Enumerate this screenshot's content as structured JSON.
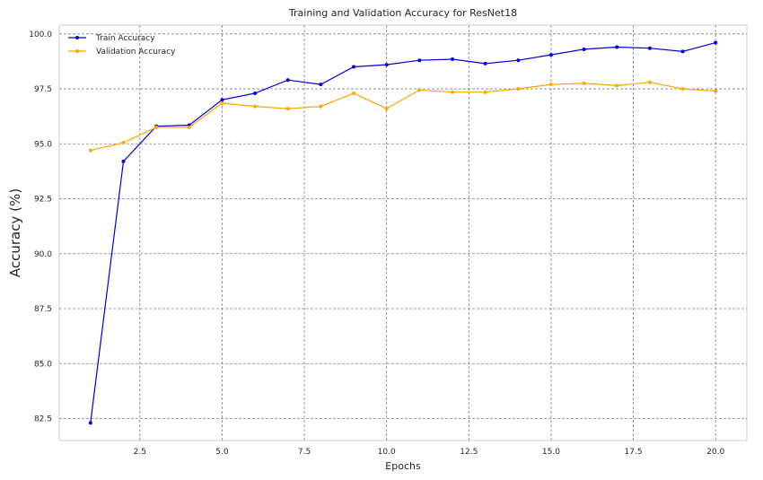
{
  "chart_data": {
    "type": "line",
    "title": "Training and Validation Accuracy for ResNet18",
    "xlabel": "Epochs",
    "ylabel": "Accuracy (%)",
    "xlim": [
      0.05,
      20.95
    ],
    "ylim": [
      81.5,
      100.4
    ],
    "xticks": [
      2.5,
      5.0,
      7.5,
      10.0,
      12.5,
      15.0,
      17.5,
      20.0
    ],
    "xtick_labels": [
      "2.5",
      "5.0",
      "7.5",
      "10.0",
      "12.5",
      "15.0",
      "17.5",
      "20.0"
    ],
    "yticks": [
      82.5,
      85.0,
      87.5,
      90.0,
      92.5,
      95.0,
      97.5,
      100.0
    ],
    "ytick_labels": [
      "82.5",
      "85.0",
      "87.5",
      "90.0",
      "92.5",
      "95.0",
      "97.5",
      "100.0"
    ],
    "grid": true,
    "legend_position": "top-left",
    "x": [
      1,
      2,
      3,
      4,
      5,
      6,
      7,
      8,
      9,
      10,
      11,
      12,
      13,
      14,
      15,
      16,
      17,
      18,
      19,
      20
    ],
    "series": [
      {
        "name": "Train Accuracy",
        "color": "#0000dd",
        "values": [
          82.3,
          94.2,
          95.8,
          95.85,
          97.0,
          97.3,
          97.9,
          97.7,
          98.5,
          98.6,
          98.8,
          98.85,
          98.65,
          98.8,
          99.05,
          99.3,
          99.4,
          99.35,
          99.2,
          99.6
        ]
      },
      {
        "name": "Validation Accuracy",
        "color": "#ffa500",
        "values": [
          94.7,
          95.05,
          95.75,
          95.75,
          96.85,
          96.7,
          96.6,
          96.7,
          97.3,
          96.6,
          97.45,
          97.35,
          97.35,
          97.5,
          97.7,
          97.75,
          97.65,
          97.8,
          97.5,
          97.4
        ]
      }
    ]
  }
}
